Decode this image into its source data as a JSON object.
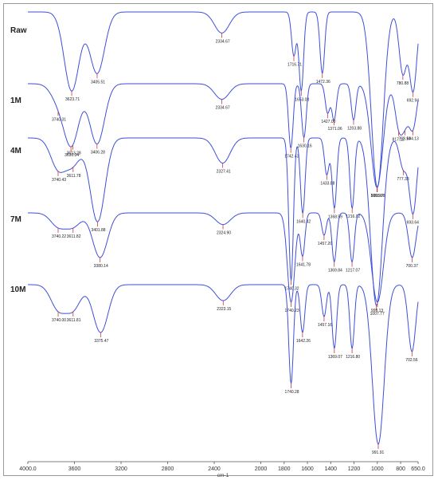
{
  "chart_data": {
    "type": "line",
    "xlabel": "cm-1",
    "x_reversed": true,
    "xlim": [
      4000,
      650
    ],
    "x_ticks": [
      {
        "value": 4000,
        "label": "4000.0"
      },
      {
        "value": 3600,
        "label": "3600"
      },
      {
        "value": 3200,
        "label": "3200"
      },
      {
        "value": 2800,
        "label": "2800"
      },
      {
        "value": 2400,
        "label": "2400"
      },
      {
        "value": 2000,
        "label": "2000"
      },
      {
        "value": 1800,
        "label": "1800"
      },
      {
        "value": 1600,
        "label": "1600"
      },
      {
        "value": 1400,
        "label": "1400"
      },
      {
        "value": 1200,
        "label": "1200"
      },
      {
        "value": 1000,
        "label": "1000"
      },
      {
        "value": 800,
        "label": "800"
      },
      {
        "value": 650,
        "label": "650.0"
      }
    ],
    "series": [
      {
        "name": "Raw",
        "peaks": [
          {
            "x": 3623.71,
            "label": "3623.71",
            "depth": 0.45
          },
          {
            "x": 3405.51,
            "label": "3405.51",
            "depth": 0.35
          },
          {
            "x": 2334.67,
            "label": "2334.67",
            "depth": 0.12
          },
          {
            "x": 1716.71,
            "label": "1716.71",
            "depth": 0.25
          },
          {
            "x": 1653.08,
            "label": "1653.08",
            "depth": 0.45
          },
          {
            "x": 1472.36,
            "label": "1472.36",
            "depth": 0.35
          },
          {
            "x": 780.88,
            "label": "780.88",
            "depth": 0.35
          },
          {
            "x": 692.94,
            "label": "692.94",
            "depth": 0.45
          },
          {
            "x": 999.97,
            "label": "999.97",
            "depth": 1.0
          }
        ]
      },
      {
        "name": "1M",
        "peaks": [
          {
            "x": 3613.28,
            "label": "3613.28",
            "depth": 0.18
          },
          {
            "x": 3740.31,
            "label": "3740.31",
            "depth": 0.15
          },
          {
            "x": 3630.04,
            "label": "3630.04",
            "depth": 0.4
          },
          {
            "x": 3406.28,
            "label": "3406.28",
            "depth": 0.58
          },
          {
            "x": 2334.67,
            "label": "2334.67",
            "depth": 0.15
          },
          {
            "x": 1742.43,
            "label": "1742.43",
            "depth": 0.62
          },
          {
            "x": 1630.16,
            "label": "1630.16",
            "depth": 0.52
          },
          {
            "x": 1427.0,
            "label": "1427.00",
            "depth": 0.28
          },
          {
            "x": 1371.06,
            "label": "1371.06",
            "depth": 0.35
          },
          {
            "x": 1203.88,
            "label": "1203.88",
            "depth": 0.35
          },
          {
            "x": 1003.08,
            "label": "1003.08",
            "depth": 1.0
          },
          {
            "x": 817.12,
            "label": "817.12",
            "depth": 0.38
          },
          {
            "x": 763.14,
            "label": "763.14",
            "depth": 0.32
          },
          {
            "x": 694.13,
            "label": "694.13",
            "depth": 0.42
          }
        ]
      },
      {
        "name": "4M",
        "peaks": [
          {
            "x": 3611.78,
            "label": "3611.78",
            "depth": 0.15
          },
          {
            "x": 3740.43,
            "label": "3740.43",
            "depth": 0.18
          },
          {
            "x": 3401.88,
            "label": "3401.88",
            "depth": 0.5
          },
          {
            "x": 2327.41,
            "label": "2327.41",
            "depth": 0.15
          },
          {
            "x": 1740.32,
            "label": "1740.32",
            "depth": 0.85
          },
          {
            "x": 1640.42,
            "label": "1640.42",
            "depth": 0.45
          },
          {
            "x": 1433.88,
            "label": "1433.88",
            "depth": 0.22
          },
          {
            "x": 1368.59,
            "label": "1368.59",
            "depth": 0.42
          },
          {
            "x": 1216.02,
            "label": "1216.02",
            "depth": 0.42
          },
          {
            "x": 1007.77,
            "label": "1007.77",
            "depth": 1.0
          },
          {
            "x": 777.33,
            "label": "777.33",
            "depth": 0.18
          },
          {
            "x": 693.64,
            "label": "693.64",
            "depth": 0.45
          }
        ]
      },
      {
        "name": "7M",
        "peaks": [
          {
            "x": 3611.82,
            "label": "3611.82",
            "depth": 0.15
          },
          {
            "x": 3740.22,
            "label": "3740.22",
            "depth": 0.15
          },
          {
            "x": 3380.14,
            "label": "3380.14",
            "depth": 0.5
          },
          {
            "x": 2324.9,
            "label": "2324.90",
            "depth": 0.13
          },
          {
            "x": 1740.23,
            "label": "1740.23",
            "depth": 1.0
          },
          {
            "x": 1641.78,
            "label": "1641.78",
            "depth": 0.48
          },
          {
            "x": 1457.2,
            "label": "1457.20",
            "depth": 0.25
          },
          {
            "x": 1369.84,
            "label": "1369.84",
            "depth": 0.55
          },
          {
            "x": 1217.07,
            "label": "1217.07",
            "depth": 0.55
          },
          {
            "x": 999.13,
            "label": "999.13",
            "depth": 1.0
          },
          {
            "x": 700.37,
            "label": "700.37",
            "depth": 0.5
          }
        ]
      },
      {
        "name": "10M",
        "peaks": [
          {
            "x": 3611.81,
            "label": "3611.81",
            "depth": 0.15
          },
          {
            "x": 3740.0,
            "label": "3740.00",
            "depth": 0.15
          },
          {
            "x": 3375.47,
            "label": "3375.47",
            "depth": 0.3
          },
          {
            "x": 2323.15,
            "label": "2323.15",
            "depth": 0.1
          },
          {
            "x": 1740.28,
            "label": "1740.28",
            "depth": 0.62
          },
          {
            "x": 1642.26,
            "label": "1642.26",
            "depth": 0.3
          },
          {
            "x": 1457.16,
            "label": "1457.16",
            "depth": 0.2
          },
          {
            "x": 1369.07,
            "label": "1369.07",
            "depth": 0.4
          },
          {
            "x": 1216.8,
            "label": "1216.80",
            "depth": 0.4
          },
          {
            "x": 991.91,
            "label": "991.91",
            "depth": 1.0
          },
          {
            "x": 702.56,
            "label": "702.56",
            "depth": 0.42
          }
        ]
      }
    ]
  }
}
